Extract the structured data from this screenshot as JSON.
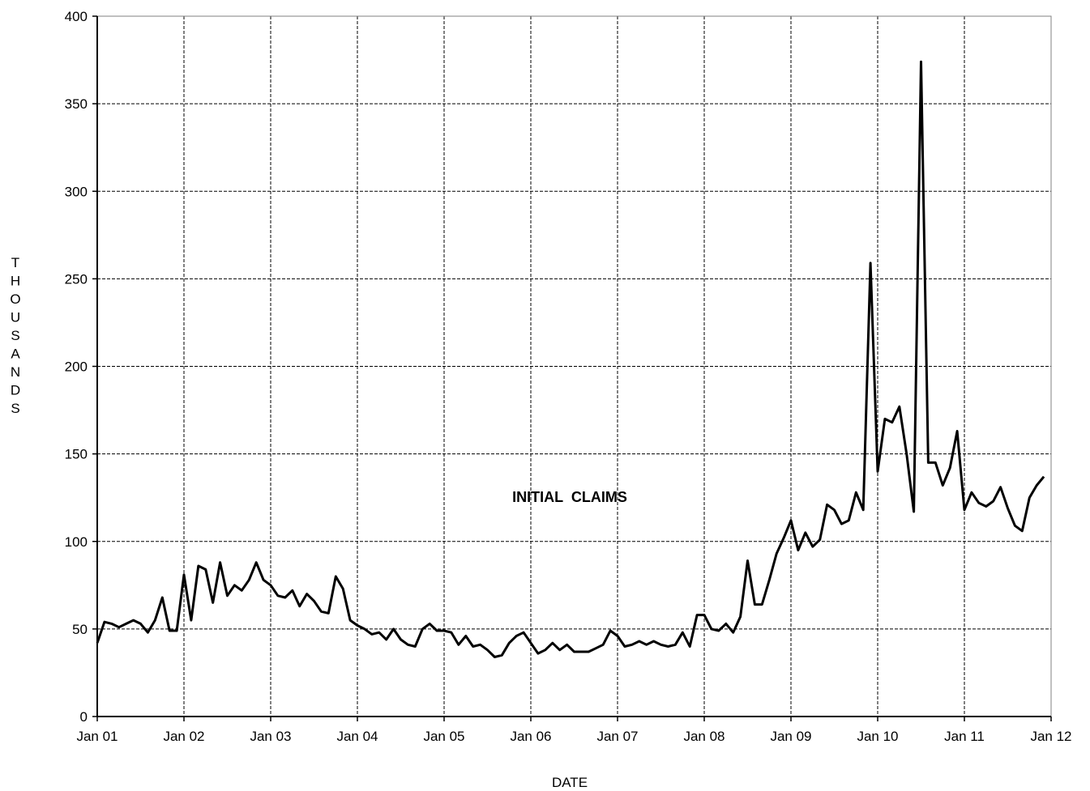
{
  "chart_data": {
    "type": "line",
    "xlabel": "DATE",
    "ylabel": "THOUSANDS",
    "ylim": [
      0,
      400
    ],
    "yticks": [
      "0",
      "50",
      "100",
      "150",
      "200",
      "250",
      "300",
      "350",
      "400"
    ],
    "xlim": [
      "2001-01",
      "2012-01"
    ],
    "xticks": [
      "Jan 01",
      "Jan 02",
      "Jan 03",
      "Jan 04",
      "Jan 05",
      "Jan 06",
      "Jan 07",
      "Jan 08",
      "Jan 09",
      "Jan 10",
      "Jan 11",
      "Jan 12"
    ],
    "grid": true,
    "annotations": [
      {
        "text": "INITIAL  CLAIMS"
      }
    ],
    "series": [
      {
        "x": [
          "2001-01",
          "2001-02",
          "2001-03",
          "2001-04",
          "2001-05",
          "2001-06",
          "2001-07",
          "2001-08",
          "2001-09",
          "2001-10",
          "2001-11",
          "2001-12",
          "2002-01",
          "2002-02",
          "2002-03",
          "2002-04",
          "2002-05",
          "2002-06",
          "2002-07",
          "2002-08",
          "2002-09",
          "2002-10",
          "2002-11",
          "2002-12",
          "2003-01",
          "2003-02",
          "2003-03",
          "2003-04",
          "2003-05",
          "2003-06",
          "2003-07",
          "2003-08",
          "2003-09",
          "2003-10",
          "2003-11",
          "2003-12",
          "2004-01",
          "2004-02",
          "2004-03",
          "2004-04",
          "2004-05",
          "2004-06",
          "2004-07",
          "2004-08",
          "2004-09",
          "2004-10",
          "2004-11",
          "2004-12",
          "2005-01",
          "2005-02",
          "2005-03",
          "2005-04",
          "2005-05",
          "2005-06",
          "2005-07",
          "2005-08",
          "2005-09",
          "2005-10",
          "2005-11",
          "2005-12",
          "2006-01",
          "2006-02",
          "2006-03",
          "2006-04",
          "2006-05",
          "2006-06",
          "2006-07",
          "2006-08",
          "2006-09",
          "2006-10",
          "2006-11",
          "2006-12",
          "2007-01",
          "2007-02",
          "2007-03",
          "2007-04",
          "2007-05",
          "2007-06",
          "2007-07",
          "2007-08",
          "2007-09",
          "2007-10",
          "2007-11",
          "2007-12",
          "2008-01",
          "2008-02",
          "2008-03",
          "2008-04",
          "2008-05",
          "2008-06",
          "2008-07",
          "2008-08",
          "2008-09",
          "2008-10",
          "2008-11",
          "2008-12",
          "2009-01",
          "2009-02",
          "2009-03",
          "2009-04",
          "2009-05",
          "2009-06",
          "2009-07",
          "2009-08",
          "2009-09",
          "2009-10",
          "2009-11",
          "2009-12",
          "2010-01",
          "2010-02",
          "2010-03",
          "2010-04",
          "2010-05",
          "2010-06",
          "2010-07",
          "2010-08",
          "2010-09",
          "2010-10",
          "2010-11",
          "2010-12",
          "2011-01",
          "2011-02",
          "2011-03",
          "2011-04",
          "2011-05",
          "2011-06",
          "2011-07",
          "2011-08",
          "2011-09",
          "2011-10",
          "2011-11",
          "2011-12"
        ],
        "values": [
          42,
          54,
          53,
          51,
          53,
          55,
          53,
          48,
          55,
          68,
          49,
          49,
          81,
          55,
          86,
          84,
          65,
          88,
          69,
          75,
          72,
          78,
          88,
          78,
          75,
          69,
          68,
          72,
          63,
          70,
          66,
          60,
          59,
          80,
          73,
          55,
          52,
          50,
          47,
          48,
          44,
          50,
          44,
          41,
          40,
          50,
          53,
          49,
          49,
          48,
          41,
          46,
          40,
          41,
          38,
          34,
          35,
          42,
          46,
          48,
          42,
          36,
          38,
          42,
          38,
          41,
          37,
          37,
          37,
          39,
          41,
          49,
          46,
          40,
          41,
          43,
          41,
          43,
          41,
          40,
          41,
          48,
          40,
          58,
          58,
          50,
          49,
          53,
          48,
          57,
          89,
          64,
          64,
          78,
          93,
          102,
          112,
          95,
          105,
          97,
          101,
          121,
          118,
          110,
          112,
          128,
          118,
          259,
          140,
          170,
          168,
          177,
          150,
          117,
          374,
          145,
          145,
          132,
          142,
          163,
          118,
          128,
          122,
          120,
          123,
          131,
          119,
          109,
          106,
          125,
          132,
          137
        ]
      }
    ]
  }
}
